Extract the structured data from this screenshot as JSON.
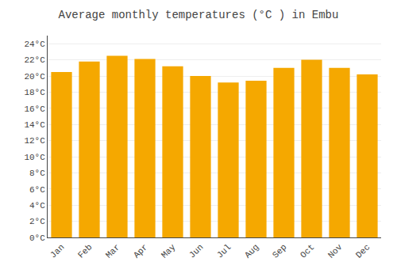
{
  "chart_data": {
    "type": "bar",
    "title": "Average monthly temperatures (°C ) in Embu",
    "categories": [
      "Jan",
      "Feb",
      "Mar",
      "Apr",
      "May",
      "Jun",
      "Jul",
      "Aug",
      "Sep",
      "Oct",
      "Nov",
      "Dec"
    ],
    "values": [
      20.5,
      21.8,
      22.5,
      22.1,
      21.2,
      20.0,
      19.2,
      19.4,
      21.0,
      22.0,
      21.0,
      20.2
    ],
    "color": "#F5A800",
    "ylim": [
      0,
      25
    ],
    "yticks": [
      {
        "value": 0,
        "label": "0°C"
      },
      {
        "value": 2,
        "label": "2°C"
      },
      {
        "value": 4,
        "label": "4°C"
      },
      {
        "value": 6,
        "label": "6°C"
      },
      {
        "value": 8,
        "label": "8°C"
      },
      {
        "value": 10,
        "label": "10°C"
      },
      {
        "value": 12,
        "label": "12°C"
      },
      {
        "value": 14,
        "label": "14°C"
      },
      {
        "value": 16,
        "label": "16°C"
      },
      {
        "value": 18,
        "label": "18°C"
      },
      {
        "value": 20,
        "label": "20°C"
      },
      {
        "value": 22,
        "label": "22°C"
      },
      {
        "value": 24,
        "label": "24°C"
      }
    ],
    "grid": true
  }
}
